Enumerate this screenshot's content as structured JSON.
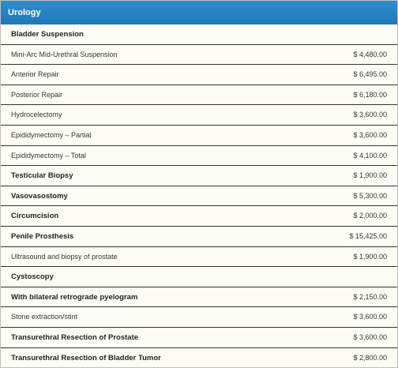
{
  "header": {
    "title": "Urology"
  },
  "rows": [
    {
      "label": "Bladder Suspension",
      "price": "",
      "bold": true
    },
    {
      "label": "Mini-Arc Mid-Urethral Suspension",
      "price": "$ 4,480.00",
      "bold": false
    },
    {
      "label": "Anterior Repair",
      "price": "$ 6,495.00",
      "bold": false
    },
    {
      "label": "Posterior Repair",
      "price": "$ 6,180.00",
      "bold": false
    },
    {
      "label": "Hydrocelectomy",
      "price": "$ 3,600.00",
      "bold": false
    },
    {
      "label": "Epididymectomy – Partial",
      "price": "$ 3,600.00",
      "bold": false
    },
    {
      "label": "Epididymectomy – Total",
      "price": "$ 4,100.00",
      "bold": false
    },
    {
      "label": "Testicular Biopsy",
      "price": "$ 1,900.00",
      "bold": true
    },
    {
      "label": "Vasovasostomy",
      "price": "$ 5,300.00",
      "bold": true
    },
    {
      "label": "Circumcision",
      "price": "$ 2,000.00",
      "bold": true
    },
    {
      "label": "Penile Prosthesis",
      "price": "$ 15,425.00",
      "bold": true
    },
    {
      "label": "Ultrasound and biopsy of prostate",
      "price": "$ 1,900.00",
      "bold": false
    },
    {
      "label": "Cystoscopy",
      "price": "",
      "bold": true
    },
    {
      "label": "With bilateral retrograde pyelogram",
      "price": "$ 2,150.00",
      "bold": true
    },
    {
      "label": "Stone extraction/stint",
      "price": "$ 3,600.00",
      "bold": false
    },
    {
      "label": "Transurethral Resection of Prostate",
      "price": "$ 3,600.00",
      "bold": true
    },
    {
      "label": "Transurethral Resection of Bladder Tumor",
      "price": "$ 2,800.00",
      "bold": true
    }
  ]
}
